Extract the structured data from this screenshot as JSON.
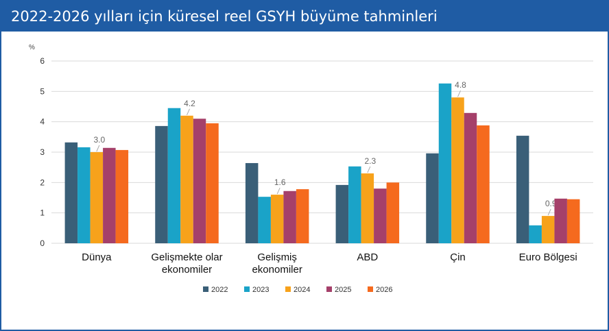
{
  "title": "2022-2026 yılları için küresel reel GSYH büyüme tahminleri",
  "chart_data": {
    "type": "bar",
    "y_label": "%",
    "categories": [
      "Dünya",
      "Gelişmekte olar ekonomiler",
      "Gelişmiş ekonomiler",
      "ABD",
      "Çin",
      "Euro Bölgesi"
    ],
    "series": [
      {
        "name": "2022",
        "color": "#3a5f78",
        "values": [
          3.32,
          3.86,
          2.64,
          1.92,
          2.96,
          3.54
        ]
      },
      {
        "name": "2023",
        "color": "#1aa3c8",
        "values": [
          3.16,
          4.45,
          1.53,
          2.53,
          5.26,
          0.59
        ]
      },
      {
        "name": "2024",
        "color": "#f7a21b",
        "values": [
          3.0,
          4.2,
          1.6,
          2.3,
          4.8,
          0.9
        ],
        "value_labels": [
          "3.0",
          "4.2",
          "1.6",
          "2.3",
          "4.8",
          "0.9"
        ]
      },
      {
        "name": "2025",
        "color": "#a5406a",
        "values": [
          3.14,
          4.1,
          1.72,
          1.8,
          4.29,
          1.47
        ]
      },
      {
        "name": "2026",
        "color": "#f56a1e",
        "values": [
          3.07,
          3.95,
          1.78,
          2.0,
          3.88,
          1.45
        ]
      }
    ],
    "ylim": [
      0,
      6
    ],
    "yticks": [
      0,
      1,
      2,
      3,
      4,
      5,
      6
    ],
    "grid": true,
    "legend": "bottom"
  }
}
